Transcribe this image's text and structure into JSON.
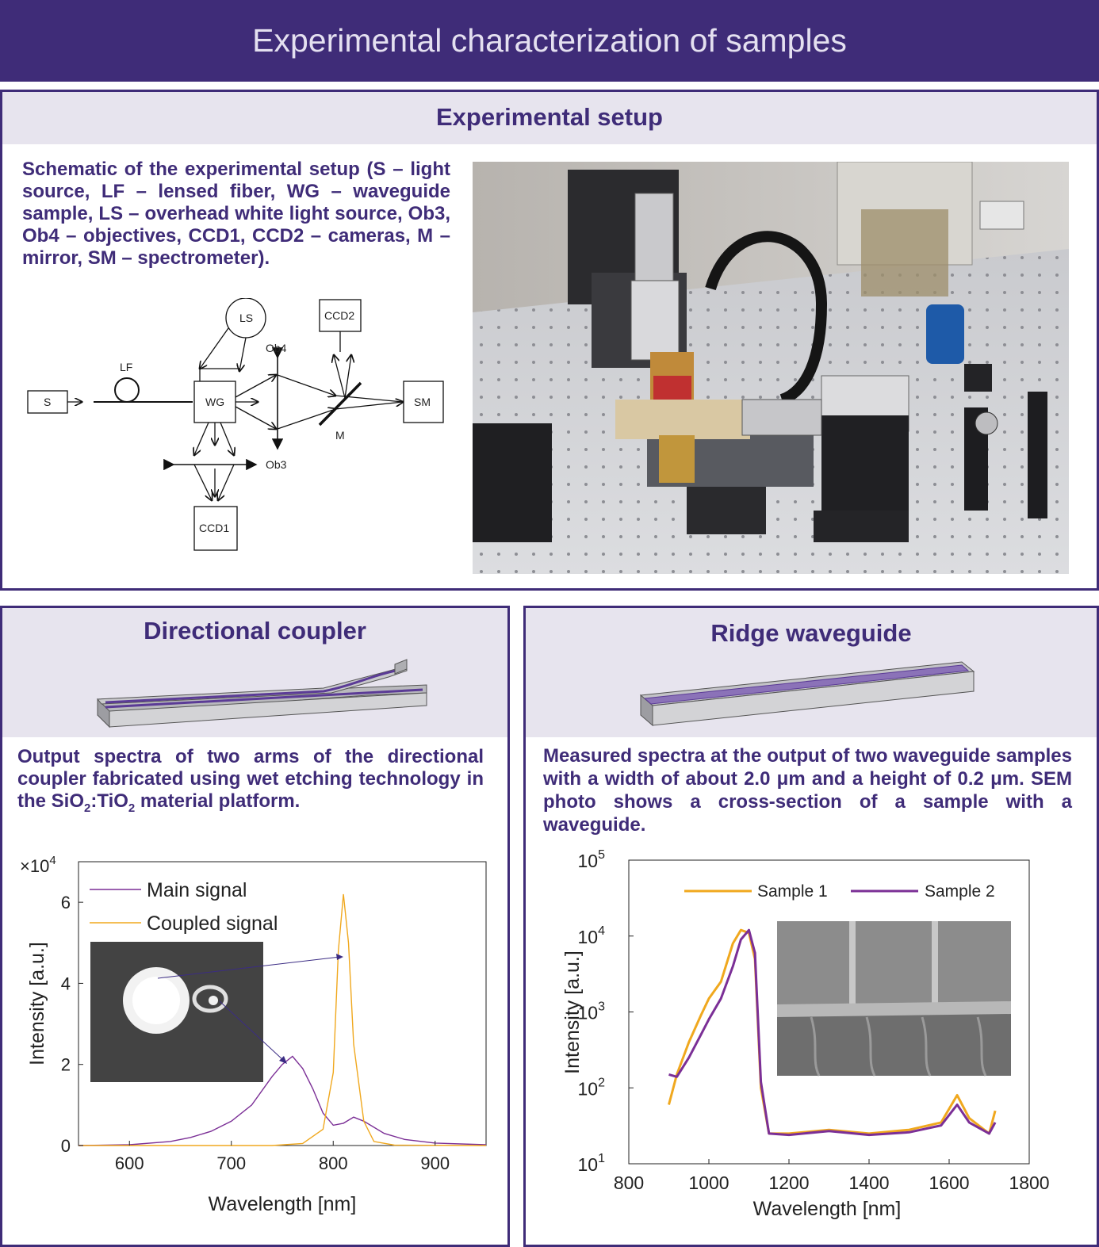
{
  "banner": {
    "title": "Experimental characterization of samples"
  },
  "setup": {
    "heading": "Experimental setup",
    "description": "Schematic of the experimental setup (S – light source, LF – lensed fiber, WG – waveguide sample, LS – overhead white light source, Ob3, Ob4 – objectives, CCD1, CCD2 – cameras, M – mirror, SM – spectrometer).",
    "schematic": {
      "s": "S",
      "lf": "LF",
      "wg": "WG",
      "ls": "LS",
      "ob4": "Ob4",
      "ob3": "Ob3",
      "ccd1": "CCD1",
      "ccd2": "CCD2",
      "m": "M",
      "sm": "SM"
    }
  },
  "coupler": {
    "heading": "Directional coupler",
    "description_pre": "Output spectra of two arms of the directional coupler fabricated using wet etching technology in the SiO",
    "sub1": "2",
    "mid": ":TiO",
    "sub2": "2",
    "description_post": " material platform.",
    "chart_data": {
      "type": "line",
      "xlabel": "Wavelength [nm]",
      "ylabel": "Intensity [a.u.]",
      "y_multiplier": "×10^4",
      "y_multiplier_base": "×10",
      "y_multiplier_exp": "4",
      "xlim": [
        550,
        950
      ],
      "ylim": [
        0,
        7
      ],
      "x_ticks": [
        "600",
        "700",
        "800",
        "900"
      ],
      "y_ticks": [
        "0",
        "2",
        "4",
        "6"
      ],
      "legend_position": "top-left",
      "series": [
        {
          "name": "Main signal",
          "color": "#7b2f96",
          "x": [
            550,
            600,
            640,
            660,
            680,
            700,
            720,
            740,
            750,
            760,
            770,
            780,
            790,
            800,
            810,
            820,
            830,
            850,
            870,
            900,
            950
          ],
          "values": [
            0,
            0.02,
            0.1,
            0.2,
            0.35,
            0.6,
            1.0,
            1.7,
            2.0,
            2.2,
            1.9,
            1.4,
            0.8,
            0.5,
            0.55,
            0.7,
            0.6,
            0.3,
            0.15,
            0.06,
            0.02
          ]
        },
        {
          "name": "Coupled signal",
          "color": "#f0a81e",
          "x": [
            550,
            740,
            770,
            790,
            800,
            805,
            810,
            815,
            820,
            830,
            840,
            860,
            950
          ],
          "values": [
            0,
            0,
            0.05,
            0.4,
            1.8,
            4.8,
            6.2,
            5.0,
            2.5,
            0.6,
            0.1,
            0.01,
            0
          ]
        }
      ]
    }
  },
  "ridge": {
    "heading": "Ridge waveguide",
    "description": "Measured spectra at the output of two waveguide samples with a width of about 2.0 μm and a height of 0.2 μm. SEM photo shows a cross-section of a sample with a waveguide.",
    "chart_data": {
      "type": "line",
      "xlabel": "Wavelength [nm]",
      "ylabel": "Intensity [a.u.]",
      "xlim": [
        800,
        1800
      ],
      "ylim": [
        10,
        100000
      ],
      "y_scale": "log",
      "x_ticks": [
        "800",
        "1000",
        "1200",
        "1400",
        "1600",
        "1800"
      ],
      "y_ticks": [
        {
          "base": "10",
          "exp": "1"
        },
        {
          "base": "10",
          "exp": "2"
        },
        {
          "base": "10",
          "exp": "3"
        },
        {
          "base": "10",
          "exp": "4"
        },
        {
          "base": "10",
          "exp": "5"
        }
      ],
      "legend_position": "top",
      "series": [
        {
          "name": "Sample 1",
          "color": "#f0a81e",
          "x": [
            900,
            920,
            950,
            980,
            1000,
            1030,
            1060,
            1080,
            1100,
            1115,
            1130,
            1150,
            1200,
            1300,
            1400,
            1500,
            1580,
            1620,
            1650,
            1700,
            1715
          ],
          "values": [
            60,
            150,
            400,
            900,
            1500,
            2500,
            8000,
            12000,
            11000,
            5000,
            100,
            25,
            25,
            28,
            25,
            28,
            35,
            80,
            40,
            25,
            50
          ]
        },
        {
          "name": "Sample 2",
          "color": "#7b2f96",
          "x": [
            900,
            920,
            950,
            980,
            1000,
            1030,
            1060,
            1080,
            1100,
            1115,
            1130,
            1150,
            1200,
            1300,
            1400,
            1500,
            1580,
            1620,
            1650,
            1700,
            1715
          ],
          "values": [
            150,
            140,
            250,
            500,
            800,
            1500,
            4000,
            9000,
            12000,
            6000,
            120,
            25,
            24,
            27,
            24,
            26,
            32,
            60,
            35,
            25,
            35
          ]
        }
      ]
    }
  }
}
